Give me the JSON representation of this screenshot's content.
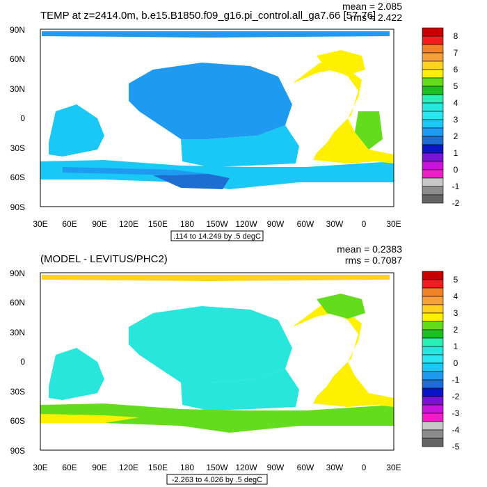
{
  "panels": [
    {
      "title": "TEMP at z=2414.0m, b.e15.B1850.f09_g16.pi_control.all_ga7.66 [57-76]",
      "stats": {
        "mean": "mean = 2.085",
        "rms": "rms = 2.422"
      },
      "contour_info": ".114 to 14.249 by .5 degC",
      "colorbar_labels": [
        "8",
        "7",
        "6",
        "5",
        "4",
        "3",
        "2",
        "1",
        "0",
        "-1",
        "-2"
      ],
      "colorbar_colors": [
        "#c80000",
        "#f01e1e",
        "#f08228",
        "#f5a03c",
        "#ffd21e",
        "#fff000",
        "#64dc1e",
        "#1ebe1e",
        "#28f0b4",
        "#28e6dc",
        "#2ae6f0",
        "#19c8f5",
        "#1e9bf0",
        "#1e6ed2",
        "#0a14c8",
        "#7814d2",
        "#c814dc",
        "#f01ec8",
        "#c8c8c8",
        "#8c8c8c",
        "#646464"
      ]
    },
    {
      "title": "(MODEL - LEVITUS/PHC2)",
      "stats": {
        "mean": "mean = 0.2383",
        "rms": "rms = 0.7087"
      },
      "contour_info": "-2.263 to 4.026 by .5 degC",
      "colorbar_labels": [
        "5",
        "4",
        "3",
        "2",
        "1",
        "0",
        "-1",
        "-2",
        "-3",
        "-4",
        "-5"
      ],
      "colorbar_colors": [
        "#c80000",
        "#f01e1e",
        "#f08228",
        "#f5a03c",
        "#ffd21e",
        "#fff000",
        "#64dc1e",
        "#1ebe1e",
        "#28f0b4",
        "#28e6dc",
        "#2ae6f0",
        "#19c8f5",
        "#1e9bf0",
        "#1e6ed2",
        "#0a14c8",
        "#7814d2",
        "#c814dc",
        "#f01ec8",
        "#c8c8c8",
        "#8c8c8c",
        "#646464"
      ]
    }
  ],
  "lat_labels": [
    "90N",
    "60N",
    "30N",
    "0",
    "30S",
    "60S",
    "90S"
  ],
  "lon_labels": [
    "30E",
    "60E",
    "90E",
    "120E",
    "150E",
    "180",
    "150W",
    "120W",
    "90W",
    "60W",
    "30W",
    "0",
    "30E"
  ],
  "map_colors": {
    "land": "#ffffff",
    "panel1_ocean": "#1e9bf0",
    "panel1_cyan": "#19c8f5",
    "panel1_deep": "#1e6ed2",
    "panel1_yellow": "#fff000",
    "panel1_green": "#64dc1e",
    "panel2_ocean": "#28e6dc",
    "panel2_yellow": "#fff000",
    "panel2_gold": "#ffd21e",
    "panel2_green": "#64dc1e"
  }
}
